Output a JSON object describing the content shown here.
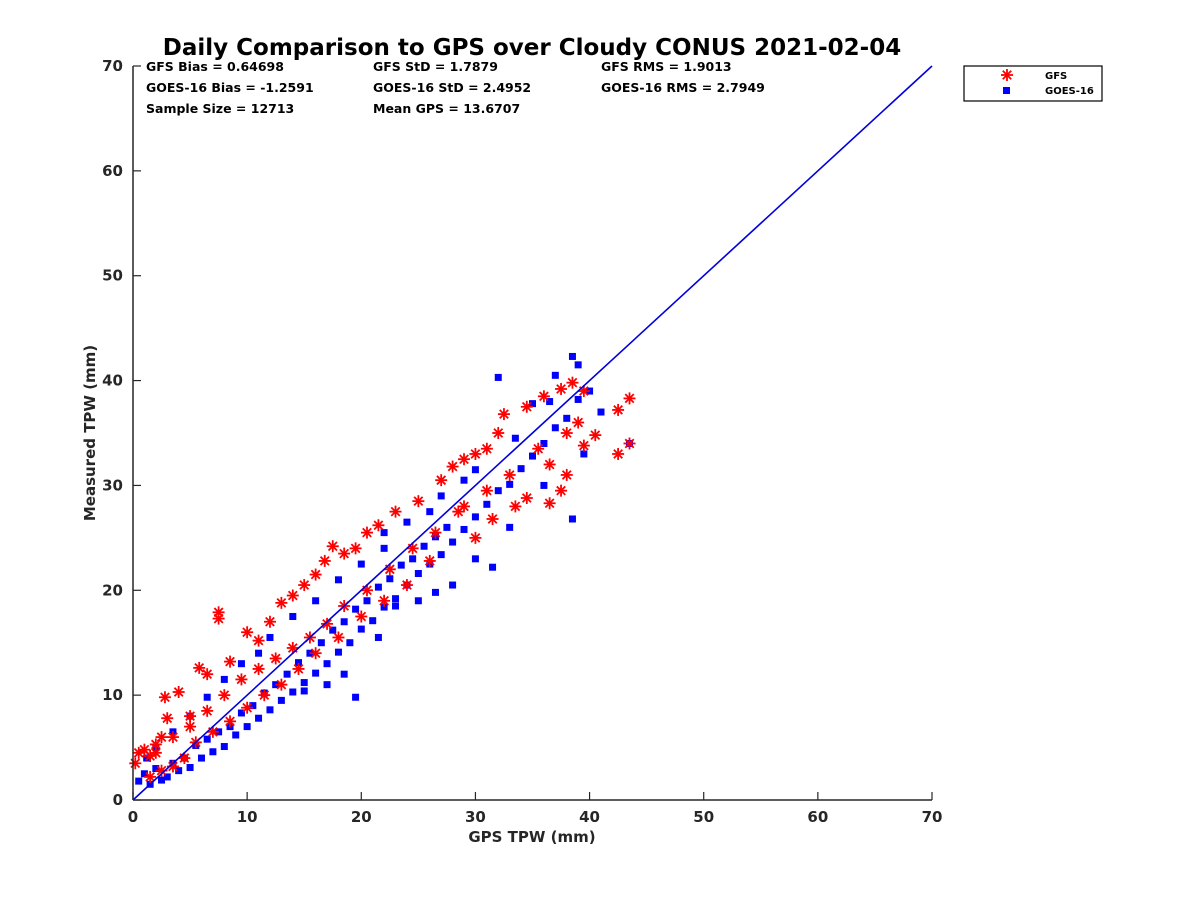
{
  "chart_data": {
    "type": "scatter",
    "title": "Daily Comparison to GPS over Cloudy CONUS 2021-02-04",
    "xlabel": "GPS TPW (mm)",
    "ylabel": "Measured TPW (mm)",
    "xlim": [
      0,
      70
    ],
    "ylim": [
      0,
      70
    ],
    "xticks": [
      "0",
      "10",
      "20",
      "30",
      "40",
      "50",
      "60",
      "70"
    ],
    "yticks": [
      "0",
      "10",
      "20",
      "30",
      "40",
      "50",
      "60",
      "70"
    ],
    "grid": false,
    "legend_position": "outside-top-right",
    "stats": [
      "GFS Bias = 0.64698",
      "GFS StD = 1.7879",
      "GFS RMS = 1.9013",
      "GOES-16 Bias = -1.2591",
      "GOES-16 StD = 2.4952",
      "GOES-16 RMS = 2.7949",
      "Sample Size = 12713",
      "Mean GPS = 13.6707"
    ],
    "reference_line": {
      "x": [
        0,
        70
      ],
      "y": [
        0,
        70
      ],
      "color": "#0000dd"
    },
    "series": [
      {
        "name": "GOES-16",
        "marker": "square",
        "color": "#0000ff",
        "points": [
          [
            0.5,
            1.8
          ],
          [
            1.0,
            2.5
          ],
          [
            1.5,
            1.5
          ],
          [
            2.0,
            3.0
          ],
          [
            2.5,
            1.9
          ],
          [
            3.0,
            2.2
          ],
          [
            3.5,
            3.5
          ],
          [
            4.0,
            2.8
          ],
          [
            4.5,
            4.0
          ],
          [
            5.0,
            3.1
          ],
          [
            5.5,
            5.2
          ],
          [
            6.0,
            4.0
          ],
          [
            6.5,
            5.8
          ],
          [
            7.0,
            4.6
          ],
          [
            7.5,
            6.5
          ],
          [
            8.0,
            5.1
          ],
          [
            8.5,
            7.0
          ],
          [
            9.0,
            6.2
          ],
          [
            9.5,
            8.3
          ],
          [
            10.0,
            7.0
          ],
          [
            10.5,
            9.0
          ],
          [
            11.0,
            7.8
          ],
          [
            11.5,
            10.2
          ],
          [
            12.0,
            8.6
          ],
          [
            12.5,
            11.0
          ],
          [
            13.0,
            9.5
          ],
          [
            13.5,
            12.0
          ],
          [
            14.0,
            10.3
          ],
          [
            14.5,
            13.1
          ],
          [
            15.0,
            11.2
          ],
          [
            15.5,
            14.0
          ],
          [
            16.0,
            12.1
          ],
          [
            16.5,
            15.0
          ],
          [
            17.0,
            13.0
          ],
          [
            17.5,
            16.2
          ],
          [
            18.0,
            14.1
          ],
          [
            18.5,
            17.0
          ],
          [
            19.0,
            15.0
          ],
          [
            19.5,
            18.2
          ],
          [
            20.0,
            16.3
          ],
          [
            20.5,
            19.0
          ],
          [
            21.0,
            17.1
          ],
          [
            21.5,
            20.3
          ],
          [
            22.0,
            18.4
          ],
          [
            22.5,
            21.1
          ],
          [
            23.0,
            19.2
          ],
          [
            23.5,
            22.4
          ],
          [
            24.0,
            20.5
          ],
          [
            24.5,
            23.0
          ],
          [
            25.0,
            21.6
          ],
          [
            25.5,
            24.2
          ],
          [
            26.0,
            22.5
          ],
          [
            26.5,
            25.1
          ],
          [
            27.0,
            23.4
          ],
          [
            27.5,
            26.0
          ],
          [
            28.0,
            24.6
          ],
          [
            29.0,
            25.8
          ],
          [
            30.0,
            27.0
          ],
          [
            31.0,
            28.2
          ],
          [
            32.0,
            29.5
          ],
          [
            33.0,
            30.1
          ],
          [
            34.0,
            31.6
          ],
          [
            35.0,
            32.8
          ],
          [
            36.0,
            34.0
          ],
          [
            37.0,
            35.5
          ],
          [
            38.0,
            36.4
          ],
          [
            39.0,
            38.2
          ],
          [
            40.0,
            39.0
          ],
          [
            38.5,
            42.3
          ],
          [
            37.0,
            40.5
          ],
          [
            35.0,
            37.8
          ],
          [
            32.0,
            40.3
          ],
          [
            30.0,
            23.0
          ],
          [
            31.5,
            22.2
          ],
          [
            28.0,
            20.5
          ],
          [
            26.5,
            19.8
          ],
          [
            25.0,
            19.0
          ],
          [
            23.0,
            18.5
          ],
          [
            21.5,
            15.5
          ],
          [
            18.5,
            12.0
          ],
          [
            17.0,
            11.0
          ],
          [
            15.0,
            10.4
          ],
          [
            19.5,
            9.8
          ],
          [
            12.0,
            15.5
          ],
          [
            9.5,
            13.0
          ],
          [
            8.0,
            11.5
          ],
          [
            6.5,
            9.8
          ],
          [
            5.0,
            8.0
          ],
          [
            3.5,
            6.5
          ],
          [
            2.0,
            5.0
          ],
          [
            1.2,
            4.0
          ],
          [
            43.5,
            34.0
          ],
          [
            41.0,
            37.0
          ],
          [
            39.5,
            33.0
          ],
          [
            38.5,
            26.8
          ],
          [
            36.0,
            30.0
          ],
          [
            33.0,
            26.0
          ],
          [
            29.0,
            30.5
          ],
          [
            27.0,
            29.0
          ],
          [
            24.0,
            26.5
          ],
          [
            22.0,
            24.0
          ],
          [
            20.0,
            22.5
          ],
          [
            18.0,
            21.0
          ],
          [
            16.0,
            19.0
          ],
          [
            14.0,
            17.5
          ],
          [
            11.0,
            14.0
          ],
          [
            22.0,
            25.5
          ],
          [
            26.0,
            27.5
          ],
          [
            30.0,
            31.5
          ],
          [
            33.5,
            34.5
          ],
          [
            36.5,
            38.0
          ],
          [
            39.0,
            41.5
          ]
        ]
      },
      {
        "name": "GFS",
        "marker": "asterisk",
        "color": "#ff0000",
        "points": [
          [
            0.2,
            3.5
          ],
          [
            0.5,
            4.5
          ],
          [
            1.0,
            4.8
          ],
          [
            1.5,
            4.2
          ],
          [
            2.0,
            5.3
          ],
          [
            2.5,
            6.0
          ],
          [
            2.8,
            9.8
          ],
          [
            3.0,
            7.8
          ],
          [
            4.0,
            10.3
          ],
          [
            5.0,
            8.0
          ],
          [
            5.8,
            12.6
          ],
          [
            6.5,
            12.0
          ],
          [
            7.5,
            17.9
          ],
          [
            7.5,
            17.3
          ],
          [
            8.5,
            13.2
          ],
          [
            10.0,
            16.0
          ],
          [
            11.0,
            15.2
          ],
          [
            12.0,
            17.0
          ],
          [
            13.0,
            18.8
          ],
          [
            14.0,
            19.5
          ],
          [
            15.0,
            20.5
          ],
          [
            16.0,
            21.5
          ],
          [
            16.8,
            22.8
          ],
          [
            17.5,
            24.2
          ],
          [
            18.5,
            23.5
          ],
          [
            19.5,
            24.0
          ],
          [
            20.5,
            25.5
          ],
          [
            21.5,
            26.2
          ],
          [
            23.0,
            27.5
          ],
          [
            25.0,
            28.5
          ],
          [
            27.0,
            30.5
          ],
          [
            28.0,
            31.8
          ],
          [
            29.0,
            32.5
          ],
          [
            30.0,
            33.0
          ],
          [
            31.0,
            33.5
          ],
          [
            32.0,
            35.0
          ],
          [
            32.5,
            36.8
          ],
          [
            34.5,
            37.5
          ],
          [
            36.0,
            38.5
          ],
          [
            37.5,
            39.2
          ],
          [
            38.5,
            39.8
          ],
          [
            39.5,
            39.0
          ],
          [
            39.0,
            36.0
          ],
          [
            40.5,
            34.8
          ],
          [
            39.5,
            33.8
          ],
          [
            38.0,
            31.0
          ],
          [
            36.5,
            32.0
          ],
          [
            34.5,
            28.8
          ],
          [
            36.5,
            28.3
          ],
          [
            37.5,
            29.5
          ],
          [
            42.5,
            37.2
          ],
          [
            43.5,
            38.3
          ],
          [
            42.5,
            33.0
          ],
          [
            43.5,
            34.0
          ],
          [
            33.5,
            28.0
          ],
          [
            31.5,
            26.8
          ],
          [
            30.0,
            25.0
          ],
          [
            28.5,
            27.5
          ],
          [
            26.0,
            22.8
          ],
          [
            24.0,
            20.5
          ],
          [
            22.0,
            19.0
          ],
          [
            20.0,
            17.5
          ],
          [
            18.0,
            15.5
          ],
          [
            16.0,
            14.0
          ],
          [
            14.5,
            12.5
          ],
          [
            13.0,
            11.0
          ],
          [
            11.5,
            10.0
          ],
          [
            10.0,
            8.8
          ],
          [
            8.5,
            7.5
          ],
          [
            7.0,
            6.5
          ],
          [
            5.5,
            5.5
          ],
          [
            4.5,
            4.0
          ],
          [
            3.5,
            3.2
          ],
          [
            2.5,
            2.8
          ],
          [
            1.5,
            2.2
          ],
          [
            38.0,
            35.0
          ],
          [
            35.5,
            33.5
          ],
          [
            33.0,
            31.0
          ],
          [
            31.0,
            29.5
          ],
          [
            29.0,
            28.0
          ],
          [
            26.5,
            25.5
          ],
          [
            24.5,
            24.0
          ],
          [
            22.5,
            22.0
          ],
          [
            20.5,
            20.0
          ],
          [
            18.5,
            18.5
          ],
          [
            17.0,
            16.8
          ],
          [
            15.5,
            15.5
          ],
          [
            14.0,
            14.5
          ],
          [
            12.5,
            13.5
          ],
          [
            11.0,
            12.5
          ],
          [
            9.5,
            11.5
          ],
          [
            8.0,
            10.0
          ],
          [
            6.5,
            8.5
          ],
          [
            5.0,
            7.0
          ],
          [
            3.5,
            6.0
          ],
          [
            2.0,
            4.5
          ]
        ]
      }
    ]
  }
}
